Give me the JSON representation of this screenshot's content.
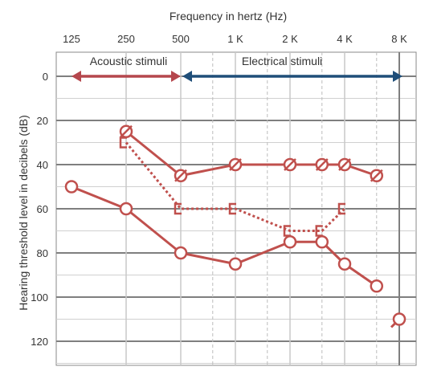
{
  "chart_data": {
    "type": "line",
    "title": "",
    "xlabel": "Frequency in hertz (Hz)",
    "ylabel": "Hearing threshold level in decibels (dB)",
    "x_scale": "log2",
    "x_ticks": [
      {
        "freq": 125,
        "label": "125"
      },
      {
        "freq": 250,
        "label": "250"
      },
      {
        "freq": 500,
        "label": "500"
      },
      {
        "freq": 1000,
        "label": "1 K"
      },
      {
        "freq": 2000,
        "label": "2 K"
      },
      {
        "freq": 4000,
        "label": "4 K"
      },
      {
        "freq": 8000,
        "label": "8 K"
      }
    ],
    "x_minor_ticks": [
      750,
      1500,
      3000,
      6000
    ],
    "ylim": [
      0,
      120
    ],
    "y_inverted": true,
    "y_ticks": [
      0,
      20,
      40,
      60,
      80,
      100,
      120
    ],
    "grid": true,
    "regions": [
      {
        "label": "Acoustic stimuli",
        "from": 125,
        "to": 500,
        "color": "#b5474d"
      },
      {
        "label": "Electrical stimuli",
        "from": 500,
        "to": 8000,
        "color": "#1f4e79"
      }
    ],
    "series": [
      {
        "marker": "circle-slash",
        "line": "solid",
        "color": "#c0504d",
        "points": [
          [
            250,
            25
          ],
          [
            500,
            45
          ],
          [
            1000,
            40
          ],
          [
            2000,
            40
          ],
          [
            3000,
            40
          ],
          [
            4000,
            40
          ],
          [
            6000,
            45
          ]
        ]
      },
      {
        "marker": "bracket",
        "line": "dotted",
        "color": "#c0504d",
        "points": [
          [
            250,
            30
          ],
          [
            500,
            60
          ],
          [
            1000,
            60
          ],
          [
            2000,
            70
          ],
          [
            3000,
            70
          ],
          [
            4000,
            60
          ]
        ]
      },
      {
        "marker": "circle",
        "line": "solid",
        "color": "#c0504d",
        "points": [
          [
            125,
            50
          ],
          [
            250,
            60
          ],
          [
            500,
            80
          ],
          [
            1000,
            85
          ],
          [
            2000,
            75
          ],
          [
            3000,
            75
          ],
          [
            4000,
            85
          ],
          [
            6000,
            95
          ]
        ]
      },
      {
        "marker": "circle-noresponse",
        "line": "none",
        "color": "#c0504d",
        "points": [
          [
            8000,
            110
          ]
        ]
      }
    ]
  }
}
